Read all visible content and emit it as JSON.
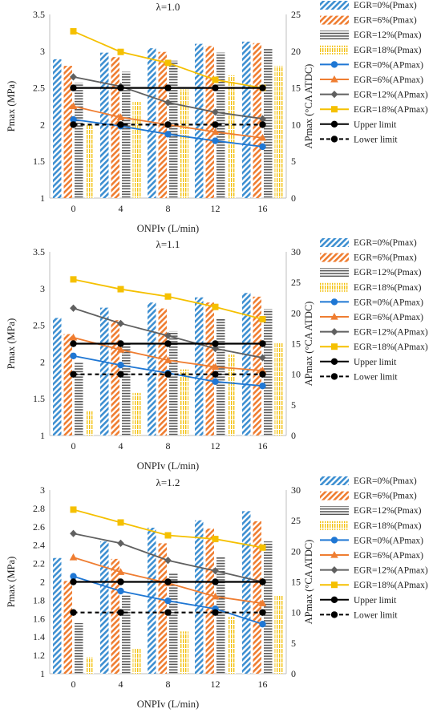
{
  "chart_data": [
    {
      "type": "bar",
      "title": "λ=1.0",
      "xlabel": "ONPIv (L/min)",
      "ylabel": "Pmax (MPa)",
      "y2label": "APmax (°CA ATDC)",
      "categories": [
        "0",
        "4",
        "8",
        "12",
        "16"
      ],
      "ylim": [
        1,
        3.5
      ],
      "yticks": [
        "1",
        "1.5",
        "2",
        "2.5",
        "3",
        "3.5"
      ],
      "y2lim": [
        0,
        25
      ],
      "y2ticks": [
        "0",
        "5",
        "10",
        "15",
        "20",
        "25"
      ],
      "bar_series": [
        {
          "name": "EGR=0%(Pmax)",
          "values": [
            2.89,
            2.98,
            3.04,
            3.1,
            3.13
          ]
        },
        {
          "name": "EGR=6%(Pmax)",
          "values": [
            2.8,
            2.92,
            2.99,
            3.07,
            3.11
          ]
        },
        {
          "name": "EGR=12%(Pmax)",
          "values": [
            2.57,
            2.72,
            2.87,
            2.98,
            3.04
          ]
        },
        {
          "name": "EGR=18%(Pmax)",
          "values": [
            2.01,
            2.31,
            2.48,
            2.67,
            2.8
          ]
        }
      ],
      "line_series": [
        {
          "name": "EGR=0%(APmax)",
          "values": [
            10.7,
            9.8,
            8.7,
            7.8,
            7.0
          ]
        },
        {
          "name": "EGR=6%(APmax)",
          "values": [
            12.5,
            11.0,
            10.0,
            9.0,
            8.2
          ]
        },
        {
          "name": "EGR=12%(APmax)",
          "values": [
            16.5,
            15.2,
            13.0,
            11.7,
            10.8
          ]
        },
        {
          "name": "EGR=18%(APmax)",
          "values": [
            22.7,
            19.9,
            18.4,
            16.1,
            15.0
          ]
        },
        {
          "name": "Upper limit",
          "values": [
            15,
            15,
            15,
            15,
            15
          ]
        },
        {
          "name": "Lower limit",
          "values": [
            10,
            10,
            10,
            10,
            10
          ]
        }
      ],
      "legend_position": "right"
    },
    {
      "type": "bar",
      "title": "λ=1.1",
      "xlabel": "ONPIv (L/min)",
      "ylabel": "Pmax (MPa)",
      "y2label": "APmax (°CA ATDC)",
      "categories": [
        "0",
        "4",
        "8",
        "12",
        "16"
      ],
      "ylim": [
        1,
        3.5
      ],
      "yticks": [
        "1",
        "1.5",
        "2",
        "2.5",
        "3",
        "3.5"
      ],
      "y2lim": [
        0,
        30
      ],
      "y2ticks": [
        "0",
        "5",
        "10",
        "15",
        "20",
        "25",
        "30"
      ],
      "bar_series": [
        {
          "name": "EGR=0%(Pmax)",
          "values": [
            2.6,
            2.74,
            2.81,
            2.88,
            2.94
          ]
        },
        {
          "name": "EGR=6%(Pmax)",
          "values": [
            2.38,
            2.57,
            2.73,
            2.81,
            2.89
          ]
        },
        {
          "name": "EGR=12%(Pmax)",
          "values": [
            1.99,
            2.24,
            2.42,
            2.6,
            2.72
          ]
        },
        {
          "name": "EGR=18%(Pmax)",
          "values": [
            1.33,
            1.58,
            1.9,
            2.1,
            2.26
          ]
        }
      ],
      "line_series": [
        {
          "name": "EGR=0%(APmax)",
          "values": [
            13.0,
            11.5,
            10.2,
            8.8,
            8.1
          ]
        },
        {
          "name": "EGR=6%(APmax)",
          "values": [
            16.0,
            14.0,
            12.3,
            11.2,
            10.6
          ]
        },
        {
          "name": "EGR=12%(APmax)",
          "values": [
            20.8,
            18.3,
            16.3,
            14.2,
            12.7
          ]
        },
        {
          "name": "EGR=18%(APmax)",
          "values": [
            25.5,
            23.9,
            22.7,
            21.0,
            19.0
          ]
        },
        {
          "name": "Upper limit",
          "values": [
            15,
            15,
            15,
            15,
            15
          ]
        },
        {
          "name": "Lower limit",
          "values": [
            10,
            10,
            10,
            10,
            10
          ]
        }
      ],
      "legend_position": "right"
    },
    {
      "type": "bar",
      "title": "λ=1.2",
      "xlabel": "ONPIv (L/min)",
      "ylabel": "Pmax (MPa)",
      "y2label": "APmax (°CA ATDC)",
      "categories": [
        "0",
        "4",
        "8",
        "12",
        "16"
      ],
      "ylim": [
        1,
        3
      ],
      "yticks": [
        "1",
        "1.2",
        "1.4",
        "1.6",
        "1.8",
        "2",
        "2.2",
        "2.4",
        "2.6",
        "2.8",
        "3"
      ],
      "y2lim": [
        0,
        30
      ],
      "y2ticks": [
        "0",
        "5",
        "10",
        "15",
        "20",
        "25",
        "30"
      ],
      "bar_series": [
        {
          "name": "EGR=0%(Pmax)",
          "values": [
            2.26,
            2.44,
            2.59,
            2.67,
            2.77
          ]
        },
        {
          "name": "EGR=6%(Pmax)",
          "values": [
            2.01,
            2.25,
            2.42,
            2.58,
            2.66
          ]
        },
        {
          "name": "EGR=12%(Pmax)",
          "values": [
            1.55,
            1.85,
            2.09,
            2.28,
            2.44
          ]
        },
        {
          "name": "EGR=18%(Pmax)",
          "values": [
            1.18,
            1.27,
            1.46,
            1.62,
            1.85
          ]
        }
      ],
      "line_series": [
        {
          "name": "EGR=0%(APmax)",
          "values": [
            15.9,
            13.5,
            11.9,
            10.6,
            8.1
          ]
        },
        {
          "name": "EGR=6%(APmax)",
          "values": [
            19.0,
            16.6,
            14.8,
            12.6,
            11.5
          ]
        },
        {
          "name": "EGR=12%(APmax)",
          "values": [
            22.9,
            21.3,
            18.5,
            16.8,
            15.0
          ]
        },
        {
          "name": "EGR=18%(APmax)",
          "values": [
            26.8,
            24.7,
            22.6,
            22.0,
            20.6
          ]
        },
        {
          "name": "Upper limit",
          "values": [
            15,
            15,
            15,
            15,
            15
          ]
        },
        {
          "name": "Lower limit",
          "values": [
            10,
            10,
            10,
            10,
            10
          ]
        }
      ],
      "legend_position": "right"
    }
  ],
  "style": {
    "bar_colors": [
      "#3d8fd1",
      "#ef7d31",
      "#575757",
      "#f3c10f"
    ],
    "line_colors": [
      "#1f77d4",
      "#ef7d31",
      "#606060",
      "#f5c000",
      "#000000",
      "#000000"
    ],
    "line_markers": [
      "circle",
      "triangle",
      "diamond",
      "square",
      "circle",
      "circle"
    ],
    "bar_patterns": [
      "diagonal-stripes",
      "diagonal-stripes",
      "horizontal-stripes",
      "vertical-dashes"
    ]
  }
}
